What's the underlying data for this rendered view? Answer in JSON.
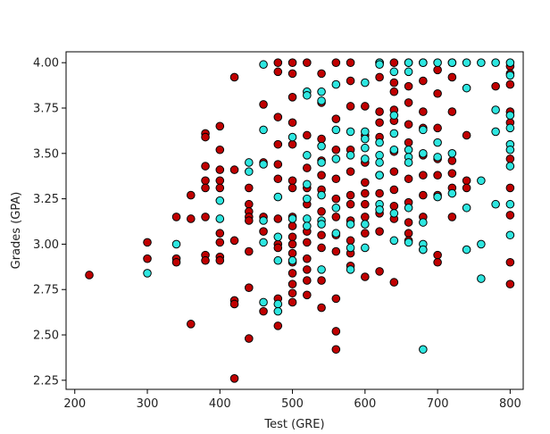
{
  "chart_data": {
    "type": "scatter",
    "title": "",
    "xlabel": "Test (GRE)",
    "ylabel": "Grades (GPA)",
    "xlim": [
      188,
      818
    ],
    "ylim": [
      2.2,
      4.06
    ],
    "xticks": [
      200,
      300,
      400,
      500,
      600,
      700,
      800
    ],
    "yticks": [
      2.25,
      2.5,
      2.75,
      3.0,
      3.25,
      3.5,
      3.75,
      4.0
    ],
    "ytick_labels": [
      "2.25",
      "2.50",
      "2.75",
      "3.00",
      "3.25",
      "3.50",
      "3.75",
      "4.00"
    ],
    "grid": false,
    "legend": false,
    "colors": {
      "red": "#c00000",
      "cyan": "#2ee6e0",
      "edge": "#000000"
    },
    "series": [
      {
        "color": "red",
        "points": [
          [
            220,
            2.83
          ],
          [
            300,
            3.01
          ],
          [
            300,
            2.92
          ],
          [
            340,
            3.15
          ],
          [
            340,
            2.92
          ],
          [
            340,
            2.9
          ],
          [
            360,
            3.27
          ],
          [
            360,
            3.14
          ],
          [
            360,
            2.56
          ],
          [
            380,
            3.61
          ],
          [
            380,
            3.59
          ],
          [
            380,
            3.43
          ],
          [
            380,
            3.35
          ],
          [
            380,
            3.31
          ],
          [
            380,
            3.15
          ],
          [
            380,
            2.94
          ],
          [
            380,
            2.91
          ],
          [
            400,
            3.65
          ],
          [
            400,
            3.52
          ],
          [
            400,
            3.41
          ],
          [
            400,
            3.35
          ],
          [
            400,
            3.31
          ],
          [
            400,
            3.06
          ],
          [
            400,
            3.01
          ],
          [
            400,
            2.93
          ],
          [
            400,
            2.91
          ],
          [
            420,
            3.92
          ],
          [
            420,
            3.41
          ],
          [
            420,
            3.02
          ],
          [
            420,
            2.69
          ],
          [
            420,
            2.67
          ],
          [
            420,
            2.26
          ],
          [
            440,
            3.31
          ],
          [
            440,
            3.22
          ],
          [
            440,
            3.18
          ],
          [
            440,
            3.15
          ],
          [
            440,
            3.13
          ],
          [
            440,
            2.96
          ],
          [
            440,
            2.76
          ],
          [
            440,
            2.48
          ],
          [
            460,
            3.77
          ],
          [
            460,
            3.45
          ],
          [
            460,
            3.15
          ],
          [
            460,
            3.07
          ],
          [
            460,
            2.63
          ],
          [
            480,
            4.0
          ],
          [
            480,
            3.95
          ],
          [
            480,
            3.7
          ],
          [
            480,
            3.55
          ],
          [
            480,
            3.44
          ],
          [
            480,
            3.36
          ],
          [
            480,
            3.14
          ],
          [
            480,
            3.0
          ],
          [
            480,
            2.98
          ],
          [
            480,
            2.7
          ],
          [
            480,
            2.55
          ],
          [
            500,
            4.0
          ],
          [
            500,
            3.94
          ],
          [
            500,
            3.81
          ],
          [
            500,
            3.67
          ],
          [
            500,
            3.55
          ],
          [
            500,
            3.35
          ],
          [
            500,
            3.31
          ],
          [
            500,
            3.15
          ],
          [
            500,
            3.1
          ],
          [
            500,
            3.04
          ],
          [
            500,
            3.0
          ],
          [
            500,
            2.95
          ],
          [
            500,
            2.9
          ],
          [
            500,
            2.84
          ],
          [
            500,
            2.78
          ],
          [
            500,
            2.73
          ],
          [
            500,
            2.68
          ],
          [
            520,
            4.0
          ],
          [
            520,
            3.6
          ],
          [
            520,
            3.42
          ],
          [
            520,
            3.31
          ],
          [
            520,
            3.22
          ],
          [
            520,
            3.07
          ],
          [
            520,
            3.01
          ],
          [
            520,
            2.92
          ],
          [
            520,
            2.86
          ],
          [
            520,
            2.8
          ],
          [
            520,
            2.72
          ],
          [
            540,
            3.94
          ],
          [
            540,
            3.78
          ],
          [
            540,
            3.58
          ],
          [
            540,
            3.46
          ],
          [
            540,
            3.38
          ],
          [
            540,
            3.3
          ],
          [
            540,
            3.18
          ],
          [
            540,
            3.05
          ],
          [
            540,
            2.98
          ],
          [
            540,
            2.8
          ],
          [
            540,
            2.65
          ],
          [
            560,
            4.0
          ],
          [
            560,
            3.69
          ],
          [
            560,
            3.52
          ],
          [
            560,
            3.36
          ],
          [
            560,
            3.25
          ],
          [
            560,
            3.15
          ],
          [
            560,
            3.05
          ],
          [
            560,
            2.96
          ],
          [
            560,
            2.7
          ],
          [
            560,
            2.52
          ],
          [
            560,
            2.42
          ],
          [
            580,
            4.0
          ],
          [
            580,
            3.9
          ],
          [
            580,
            3.76
          ],
          [
            580,
            3.52
          ],
          [
            580,
            3.4
          ],
          [
            580,
            3.27
          ],
          [
            580,
            3.22
          ],
          [
            580,
            3.13
          ],
          [
            580,
            3.02
          ],
          [
            580,
            2.95
          ],
          [
            580,
            2.88
          ],
          [
            600,
            3.76
          ],
          [
            600,
            3.6
          ],
          [
            600,
            3.45
          ],
          [
            600,
            3.34
          ],
          [
            600,
            3.28
          ],
          [
            600,
            3.22
          ],
          [
            600,
            3.15
          ],
          [
            600,
            3.06
          ],
          [
            600,
            2.82
          ],
          [
            620,
            4.0
          ],
          [
            620,
            3.92
          ],
          [
            620,
            3.73
          ],
          [
            620,
            3.67
          ],
          [
            620,
            3.59
          ],
          [
            620,
            3.38
          ],
          [
            620,
            3.28
          ],
          [
            620,
            3.17
          ],
          [
            620,
            3.07
          ],
          [
            620,
            2.85
          ],
          [
            640,
            4.0
          ],
          [
            640,
            3.89
          ],
          [
            640,
            3.84
          ],
          [
            640,
            3.74
          ],
          [
            640,
            3.68
          ],
          [
            640,
            3.51
          ],
          [
            640,
            3.4
          ],
          [
            640,
            3.3
          ],
          [
            640,
            3.21
          ],
          [
            640,
            3.14
          ],
          [
            640,
            2.79
          ],
          [
            660,
            4.0
          ],
          [
            660,
            3.87
          ],
          [
            660,
            3.78
          ],
          [
            660,
            3.66
          ],
          [
            660,
            3.56
          ],
          [
            660,
            3.36
          ],
          [
            660,
            3.23
          ],
          [
            660,
            3.12
          ],
          [
            660,
            3.06
          ],
          [
            660,
            3.02
          ],
          [
            680,
            4.0
          ],
          [
            680,
            3.9
          ],
          [
            680,
            3.73
          ],
          [
            680,
            3.64
          ],
          [
            680,
            3.49
          ],
          [
            680,
            3.38
          ],
          [
            680,
            3.27
          ],
          [
            680,
            3.15
          ],
          [
            680,
            2.97
          ],
          [
            700,
            3.96
          ],
          [
            700,
            3.83
          ],
          [
            700,
            3.64
          ],
          [
            700,
            3.47
          ],
          [
            700,
            3.38
          ],
          [
            700,
            3.27
          ],
          [
            700,
            2.94
          ],
          [
            700,
            2.9
          ],
          [
            720,
            4.0
          ],
          [
            720,
            3.92
          ],
          [
            720,
            3.73
          ],
          [
            720,
            3.46
          ],
          [
            720,
            3.39
          ],
          [
            720,
            3.31
          ],
          [
            720,
            3.15
          ],
          [
            740,
            3.6
          ],
          [
            740,
            3.35
          ],
          [
            740,
            3.31
          ],
          [
            780,
            3.87
          ],
          [
            800,
            3.98
          ],
          [
            800,
            3.94
          ],
          [
            800,
            3.88
          ],
          [
            800,
            3.73
          ],
          [
            800,
            3.67
          ],
          [
            800,
            3.47
          ],
          [
            800,
            3.31
          ],
          [
            800,
            3.16
          ],
          [
            800,
            2.9
          ],
          [
            800,
            2.78
          ]
        ]
      },
      {
        "color": "cyan",
        "points": [
          [
            300,
            2.84
          ],
          [
            340,
            3.0
          ],
          [
            400,
            3.24
          ],
          [
            400,
            3.14
          ],
          [
            440,
            3.45
          ],
          [
            440,
            3.4
          ],
          [
            460,
            3.99
          ],
          [
            460,
            3.63
          ],
          [
            460,
            3.44
          ],
          [
            460,
            3.13
          ],
          [
            460,
            3.01
          ],
          [
            460,
            2.68
          ],
          [
            480,
            3.26
          ],
          [
            480,
            3.04
          ],
          [
            480,
            2.91
          ],
          [
            480,
            2.67
          ],
          [
            480,
            2.63
          ],
          [
            500,
            3.59
          ],
          [
            500,
            3.14
          ],
          [
            500,
            2.91
          ],
          [
            520,
            3.84
          ],
          [
            520,
            3.82
          ],
          [
            520,
            3.49
          ],
          [
            520,
            3.33
          ],
          [
            520,
            3.25
          ],
          [
            520,
            3.14
          ],
          [
            520,
            3.1
          ],
          [
            540,
            3.84
          ],
          [
            540,
            3.79
          ],
          [
            540,
            3.54
          ],
          [
            540,
            3.45
          ],
          [
            540,
            3.27
          ],
          [
            540,
            3.13
          ],
          [
            540,
            3.11
          ],
          [
            540,
            2.86
          ],
          [
            560,
            3.88
          ],
          [
            560,
            3.63
          ],
          [
            560,
            3.47
          ],
          [
            560,
            3.2
          ],
          [
            560,
            3.06
          ],
          [
            580,
            3.62
          ],
          [
            580,
            3.49
          ],
          [
            580,
            3.11
          ],
          [
            580,
            2.98
          ],
          [
            580,
            2.86
          ],
          [
            600,
            3.89
          ],
          [
            600,
            3.62
          ],
          [
            600,
            3.58
          ],
          [
            600,
            3.53
          ],
          [
            600,
            3.47
          ],
          [
            600,
            3.11
          ],
          [
            600,
            2.98
          ],
          [
            620,
            4.0
          ],
          [
            620,
            3.99
          ],
          [
            620,
            3.56
          ],
          [
            620,
            3.49
          ],
          [
            620,
            3.45
          ],
          [
            620,
            3.38
          ],
          [
            620,
            3.22
          ],
          [
            620,
            3.19
          ],
          [
            640,
            3.95
          ],
          [
            640,
            3.71
          ],
          [
            640,
            3.61
          ],
          [
            640,
            3.52
          ],
          [
            640,
            3.17
          ],
          [
            640,
            3.02
          ],
          [
            660,
            4.0
          ],
          [
            660,
            3.95
          ],
          [
            660,
            3.52
          ],
          [
            660,
            3.48
          ],
          [
            660,
            3.45
          ],
          [
            660,
            3.2
          ],
          [
            660,
            3.01
          ],
          [
            680,
            4.0
          ],
          [
            680,
            3.63
          ],
          [
            680,
            3.5
          ],
          [
            680,
            3.12
          ],
          [
            680,
            3.0
          ],
          [
            680,
            2.97
          ],
          [
            680,
            2.42
          ],
          [
            700,
            4.0
          ],
          [
            700,
            3.56
          ],
          [
            700,
            3.48
          ],
          [
            700,
            3.26
          ],
          [
            720,
            4.0
          ],
          [
            720,
            3.5
          ],
          [
            720,
            3.28
          ],
          [
            740,
            4.0
          ],
          [
            740,
            3.86
          ],
          [
            740,
            3.2
          ],
          [
            740,
            2.97
          ],
          [
            760,
            4.0
          ],
          [
            760,
            3.35
          ],
          [
            760,
            3.0
          ],
          [
            760,
            2.81
          ],
          [
            780,
            4.0
          ],
          [
            780,
            3.74
          ],
          [
            780,
            3.62
          ],
          [
            780,
            3.22
          ],
          [
            800,
            4.0
          ],
          [
            800,
            3.93
          ],
          [
            800,
            3.71
          ],
          [
            800,
            3.64
          ],
          [
            800,
            3.55
          ],
          [
            800,
            3.52
          ],
          [
            800,
            3.43
          ],
          [
            800,
            3.22
          ],
          [
            800,
            3.05
          ]
        ]
      }
    ]
  }
}
